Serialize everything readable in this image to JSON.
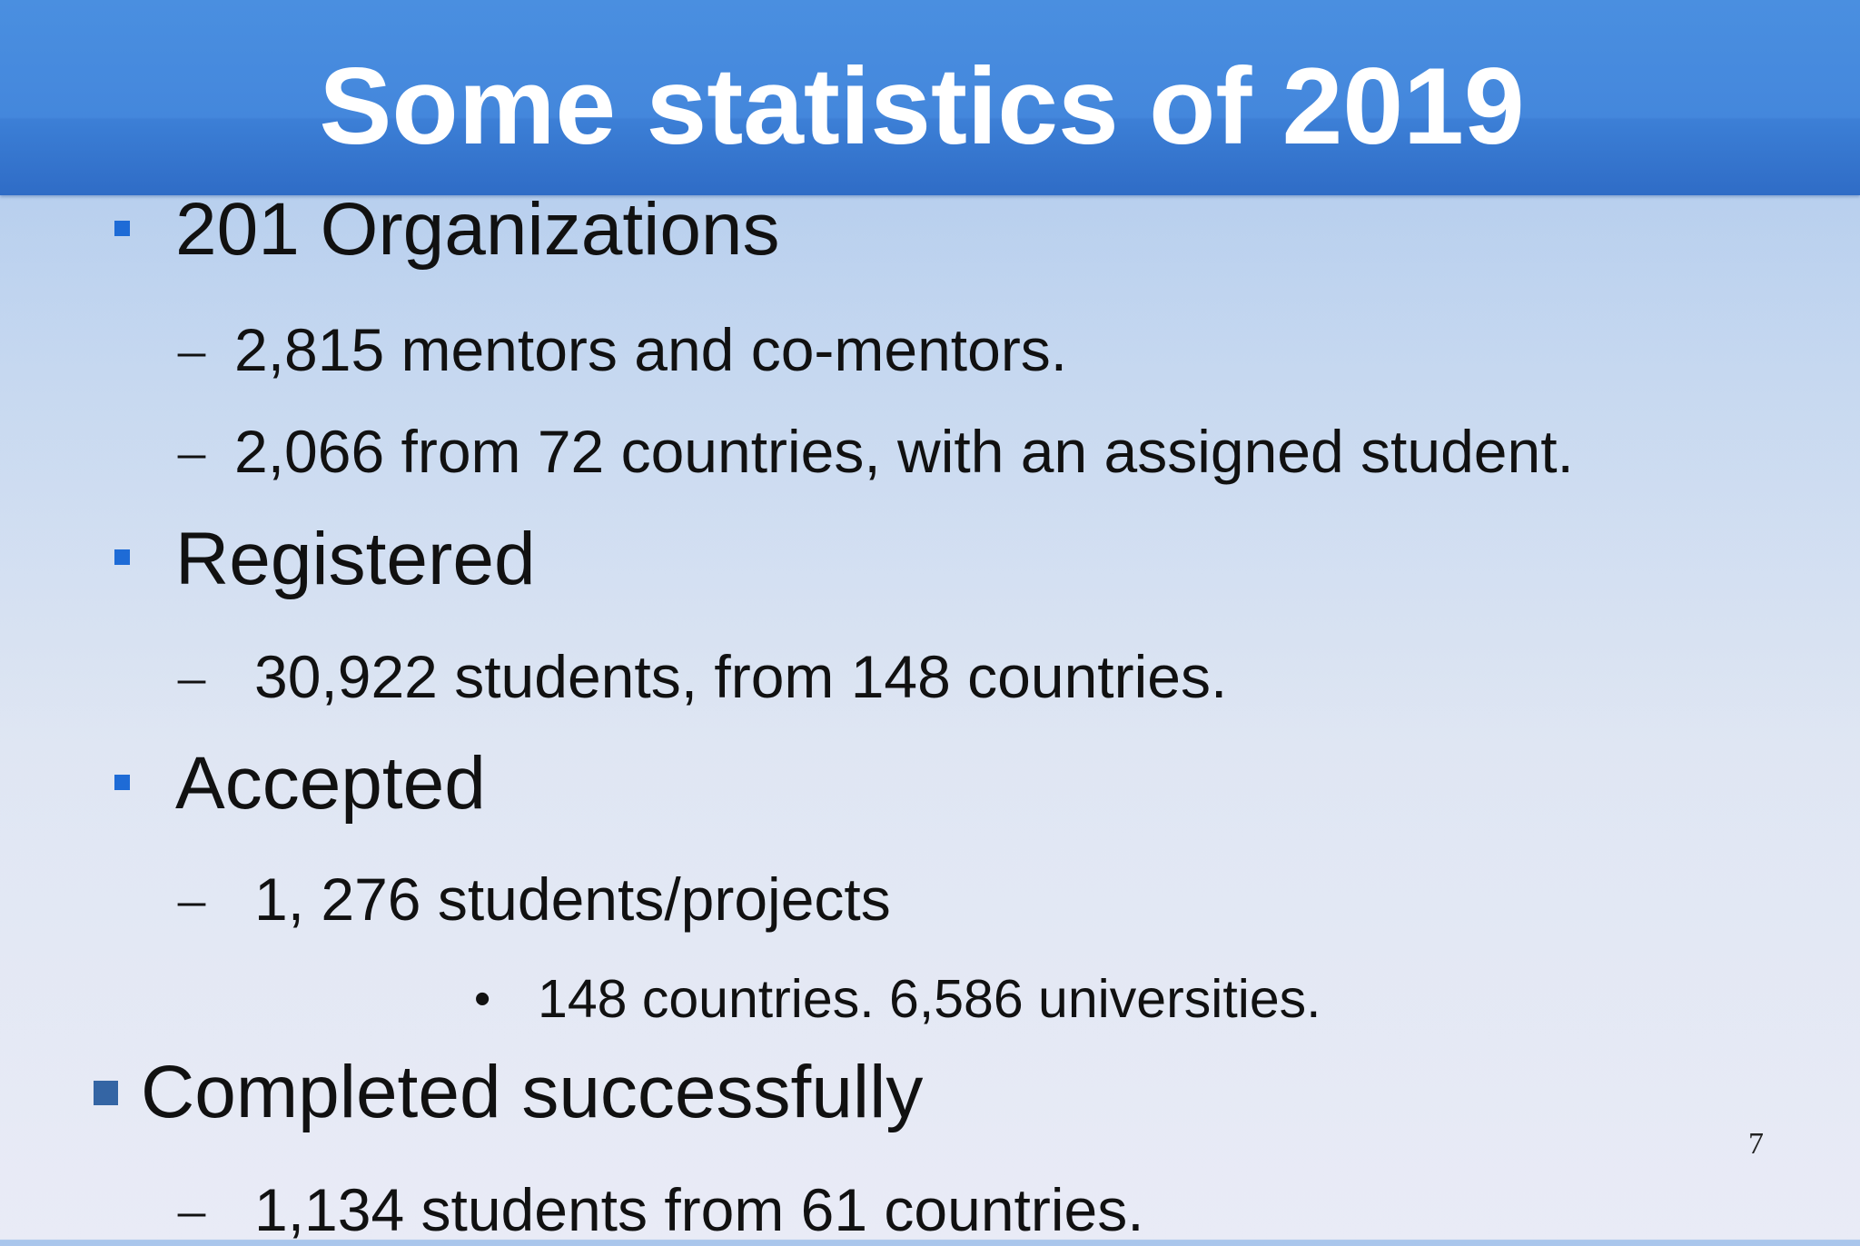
{
  "slide": {
    "title": "Some statistics of 2019",
    "page_number": "7"
  },
  "items": {
    "organizations": {
      "heading": "201 Organizations",
      "sub": [
        "2,815 mentors and co-mentors.",
        "2,066 from 72 countries, with an assigned student."
      ]
    },
    "registered": {
      "heading": "Registered",
      "sub": [
        "30,922 students, from 148 countries."
      ]
    },
    "accepted": {
      "heading": "Accepted",
      "sub": [
        "1, 276 students/projects"
      ],
      "subsub": [
        "148 countries. 6,586 universities."
      ]
    },
    "completed": {
      "heading": "Completed successfully",
      "sub": [
        "1,134 students from 61 countries."
      ]
    }
  },
  "colors": {
    "header": "#4487dc",
    "bullet": "#1e6bd6",
    "bullet_alt": "#3465a4"
  }
}
